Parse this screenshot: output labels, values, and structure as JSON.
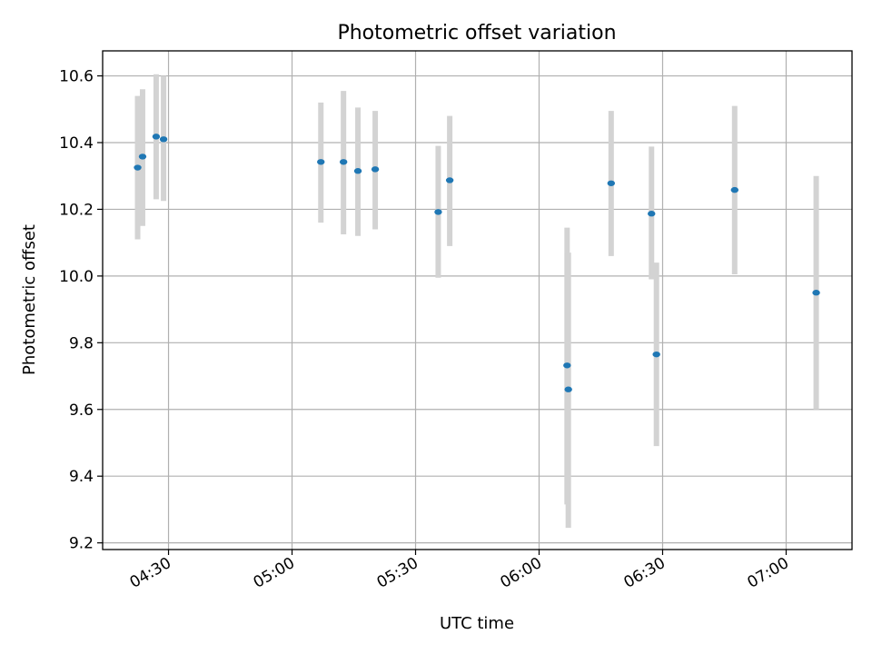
{
  "chart_data": {
    "type": "scatter",
    "title": "Photometric offset variation",
    "xlabel": "UTC time",
    "ylabel": "Photometric offset",
    "x_axis": "time",
    "xlim": [
      "04:14",
      "07:16"
    ],
    "ylim": [
      9.18,
      10.675
    ],
    "x_ticks": [
      "04:30",
      "05:00",
      "05:30",
      "06:00",
      "06:30",
      "07:00"
    ],
    "y_ticks": [
      9.2,
      9.4,
      9.6,
      9.8,
      10.0,
      10.2,
      10.4,
      10.6
    ],
    "grid": true,
    "point_color": "#1f77b4",
    "errorbar_color": "#d3d3d3",
    "points": [
      {
        "x": "04:22.5",
        "y": 10.325,
        "ylow": 10.11,
        "yhigh": 10.54
      },
      {
        "x": "04:23.7",
        "y": 10.358,
        "ylow": 10.15,
        "yhigh": 10.56
      },
      {
        "x": "04:27.0",
        "y": 10.418,
        "ylow": 10.23,
        "yhigh": 10.605
      },
      {
        "x": "04:28.8",
        "y": 10.41,
        "ylow": 10.225,
        "yhigh": 10.6
      },
      {
        "x": "05:07.0",
        "y": 10.342,
        "ylow": 10.16,
        "yhigh": 10.52
      },
      {
        "x": "05:12.5",
        "y": 10.342,
        "ylow": 10.125,
        "yhigh": 10.555
      },
      {
        "x": "05:16.0",
        "y": 10.315,
        "ylow": 10.12,
        "yhigh": 10.505
      },
      {
        "x": "05:20.2",
        "y": 10.32,
        "ylow": 10.14,
        "yhigh": 10.495
      },
      {
        "x": "05:35.5",
        "y": 10.192,
        "ylow": 9.995,
        "yhigh": 10.39
      },
      {
        "x": "05:38.3",
        "y": 10.287,
        "ylow": 10.09,
        "yhigh": 10.48
      },
      {
        "x": "06:06.8",
        "y": 9.732,
        "ylow": 9.315,
        "yhigh": 10.145
      },
      {
        "x": "06:07.1",
        "y": 9.66,
        "ylow": 9.245,
        "yhigh": 10.07
      },
      {
        "x": "06:17.5",
        "y": 10.278,
        "ylow": 10.06,
        "yhigh": 10.495
      },
      {
        "x": "06:27.3",
        "y": 10.187,
        "ylow": 9.99,
        "yhigh": 10.388
      },
      {
        "x": "06:28.5",
        "y": 9.765,
        "ylow": 9.49,
        "yhigh": 10.04
      },
      {
        "x": "06:47.5",
        "y": 10.258,
        "ylow": 10.005,
        "yhigh": 10.51
      },
      {
        "x": "07:07.3",
        "y": 9.95,
        "ylow": 9.6,
        "yhigh": 10.3
      }
    ]
  }
}
